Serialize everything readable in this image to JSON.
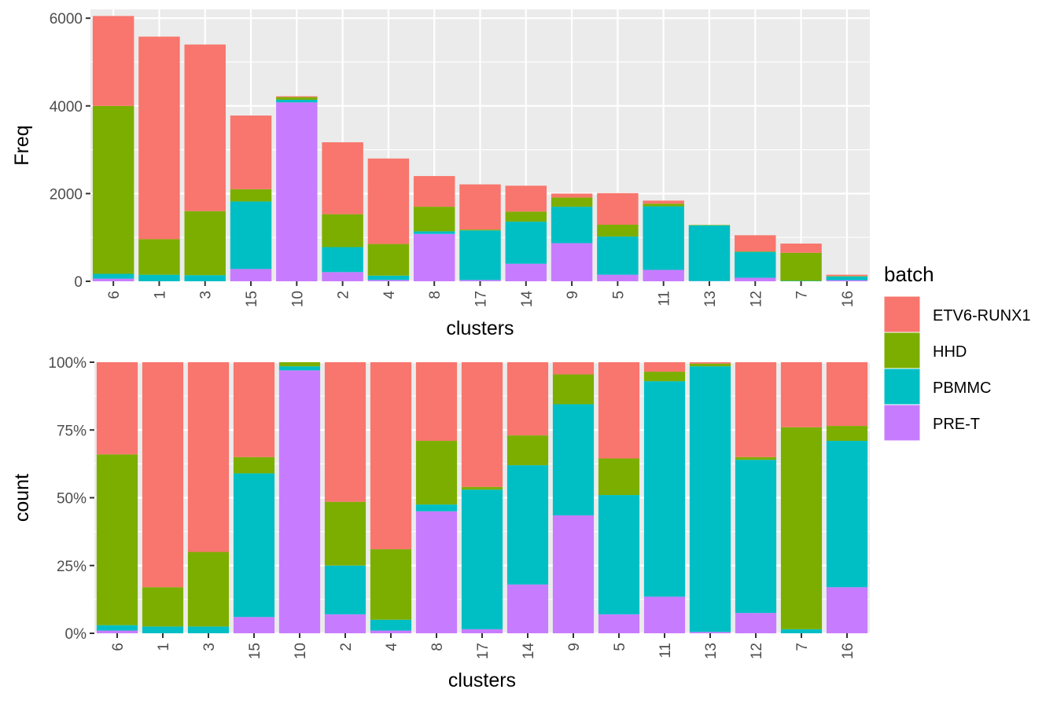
{
  "legend": {
    "title": "batch",
    "entries": [
      {
        "name": "ETV6-RUNX1",
        "color": "#F8766D"
      },
      {
        "name": "HHD",
        "color": "#7CAE00"
      },
      {
        "name": "PBMMC",
        "color": "#00BFC4"
      },
      {
        "name": "PRE-T",
        "color": "#C77CFF"
      }
    ]
  },
  "chart_data": [
    {
      "type": "bar",
      "stacked": true,
      "xlabel": "clusters",
      "ylabel": "Freq",
      "ylim": [
        0,
        6200
      ],
      "yticks": [
        "0",
        "2000",
        "4000",
        "6000"
      ],
      "ytick_values": [
        0,
        2000,
        4000,
        6000
      ],
      "grid": true,
      "legend_position": "right",
      "categories": [
        "6",
        "1",
        "3",
        "15",
        "10",
        "2",
        "4",
        "8",
        "17",
        "14",
        "9",
        "5",
        "11",
        "13",
        "12",
        "7",
        "16"
      ],
      "series": [
        {
          "name": "PRE-T",
          "color": "#C77CFF",
          "values": [
            60,
            0,
            0,
            280,
            4080,
            210,
            30,
            1080,
            30,
            400,
            870,
            150,
            260,
            5,
            80,
            0,
            25
          ]
        },
        {
          "name": "PBMMC",
          "color": "#00BFC4",
          "values": [
            110,
            150,
            140,
            1540,
            60,
            570,
            100,
            60,
            1130,
            960,
            830,
            870,
            1450,
            1270,
            590,
            10,
            85
          ]
        },
        {
          "name": "HHD",
          "color": "#7CAE00",
          "values": [
            3830,
            810,
            1460,
            280,
            60,
            750,
            720,
            560,
            20,
            230,
            210,
            270,
            60,
            10,
            10,
            640,
            10
          ]
        },
        {
          "name": "ETV6-RUNX1",
          "color": "#F8766D",
          "values": [
            2050,
            4620,
            3800,
            1680,
            20,
            1640,
            1950,
            700,
            1030,
            590,
            90,
            720,
            70,
            0,
            370,
            210,
            30
          ]
        }
      ]
    },
    {
      "type": "bar",
      "stacked": true,
      "normalized": true,
      "xlabel": "clusters",
      "ylabel": "count",
      "ylim": [
        0,
        1
      ],
      "yticks": [
        "0%",
        "25%",
        "50%",
        "75%",
        "100%"
      ],
      "ytick_values": [
        0,
        0.25,
        0.5,
        0.75,
        1
      ],
      "grid": true,
      "categories": [
        "6",
        "1",
        "3",
        "15",
        "10",
        "2",
        "4",
        "8",
        "17",
        "14",
        "9",
        "5",
        "11",
        "13",
        "12",
        "7",
        "16"
      ],
      "series": [
        {
          "name": "PRE-T",
          "color": "#C77CFF",
          "values": [
            0.01,
            0.0,
            0.0,
            0.06,
            0.97,
            0.07,
            0.01,
            0.45,
            0.015,
            0.18,
            0.435,
            0.07,
            0.135,
            0.005,
            0.075,
            0.0,
            0.17
          ]
        },
        {
          "name": "PBMMC",
          "color": "#00BFC4",
          "values": [
            0.02,
            0.025,
            0.025,
            0.53,
            0.015,
            0.18,
            0.04,
            0.025,
            0.515,
            0.44,
            0.41,
            0.44,
            0.795,
            0.98,
            0.565,
            0.015,
            0.54
          ]
        },
        {
          "name": "HHD",
          "color": "#7CAE00",
          "values": [
            0.63,
            0.145,
            0.275,
            0.06,
            0.015,
            0.235,
            0.26,
            0.235,
            0.01,
            0.11,
            0.11,
            0.135,
            0.035,
            0.01,
            0.01,
            0.745,
            0.055
          ]
        },
        {
          "name": "ETV6-RUNX1",
          "color": "#F8766D",
          "values": [
            0.34,
            0.83,
            0.7,
            0.35,
            0.0,
            0.515,
            0.69,
            0.29,
            0.46,
            0.27,
            0.045,
            0.355,
            0.035,
            0.005,
            0.35,
            0.24,
            0.235
          ]
        }
      ]
    }
  ]
}
